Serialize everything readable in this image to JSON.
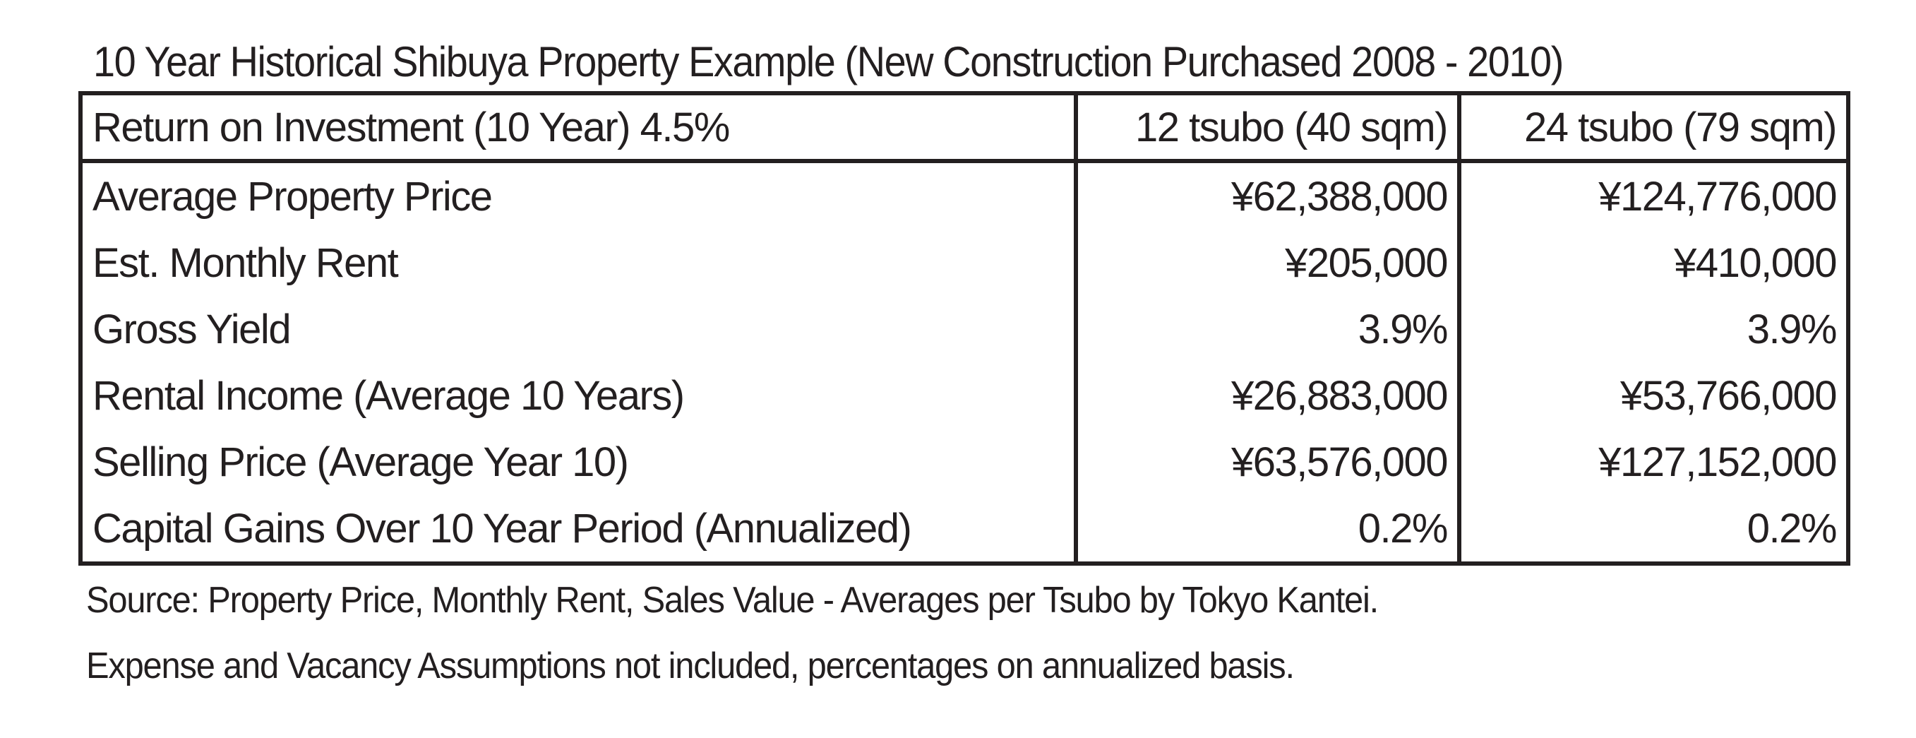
{
  "title": "10 Year Historical Shibuya Property Example (New Construction Purchased 2008 - 2010)",
  "table": {
    "header": {
      "label": "Return on Investment (10 Year) 4.5%",
      "col1": "12 tsubo (40 sqm)",
      "col2": "24 tsubo (79 sqm)"
    },
    "rows": [
      {
        "label": "Average Property Price",
        "col1": "¥62,388,000",
        "col2": "¥124,776,000"
      },
      {
        "label": "Est. Monthly Rent",
        "col1": "¥205,000",
        "col2": "¥410,000"
      },
      {
        "label": "Gross Yield",
        "col1": "3.9%",
        "col2": "3.9%"
      },
      {
        "label": "Rental Income (Average 10 Years)",
        "col1": "¥26,883,000",
        "col2": "¥53,766,000"
      },
      {
        "label": "Selling Price (Average Year 10)",
        "col1": "¥63,576,000",
        "col2": "¥127,152,000"
      },
      {
        "label": "Capital Gains Over 10 Year Period (Annualized)",
        "col1": "0.2%",
        "col2": "0.2%"
      }
    ]
  },
  "notes": [
    "Source: Property Price, Monthly Rent, Sales Value - Averages per Tsubo by Tokyo Kantei.",
    "Expense and Vacancy Assumptions not included, percentages on annualized basis."
  ]
}
